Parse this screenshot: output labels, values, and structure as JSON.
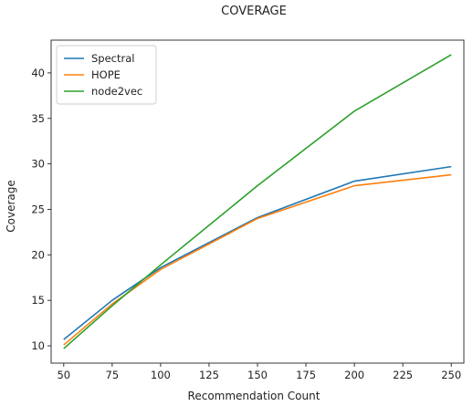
{
  "chart_data": {
    "type": "line",
    "title": "COVERAGE",
    "xlabel": "Recommendation Count",
    "ylabel": "Coverage",
    "x": [
      50,
      75,
      100,
      150,
      200,
      250
    ],
    "series": [
      {
        "name": "Spectral",
        "color": "#1f77b4",
        "values": [
          10.7,
          15.0,
          18.6,
          24.1,
          28.1,
          29.7
        ]
      },
      {
        "name": "HOPE",
        "color": "#ff7f0e",
        "values": [
          10.1,
          14.6,
          18.4,
          24.0,
          27.6,
          28.8
        ]
      },
      {
        "name": "node2vec",
        "color": "#2ca02c",
        "values": [
          9.7,
          14.4,
          18.9,
          27.6,
          35.8,
          42.0
        ]
      }
    ],
    "xticks": [
      50,
      75,
      100,
      125,
      150,
      175,
      200,
      225,
      250
    ],
    "yticks": [
      10,
      15,
      20,
      25,
      30,
      35,
      40
    ],
    "xlim": [
      43.5,
      256.5
    ],
    "ylim": [
      8.1,
      43.6
    ],
    "grid": false,
    "legend_position": "top-left"
  }
}
